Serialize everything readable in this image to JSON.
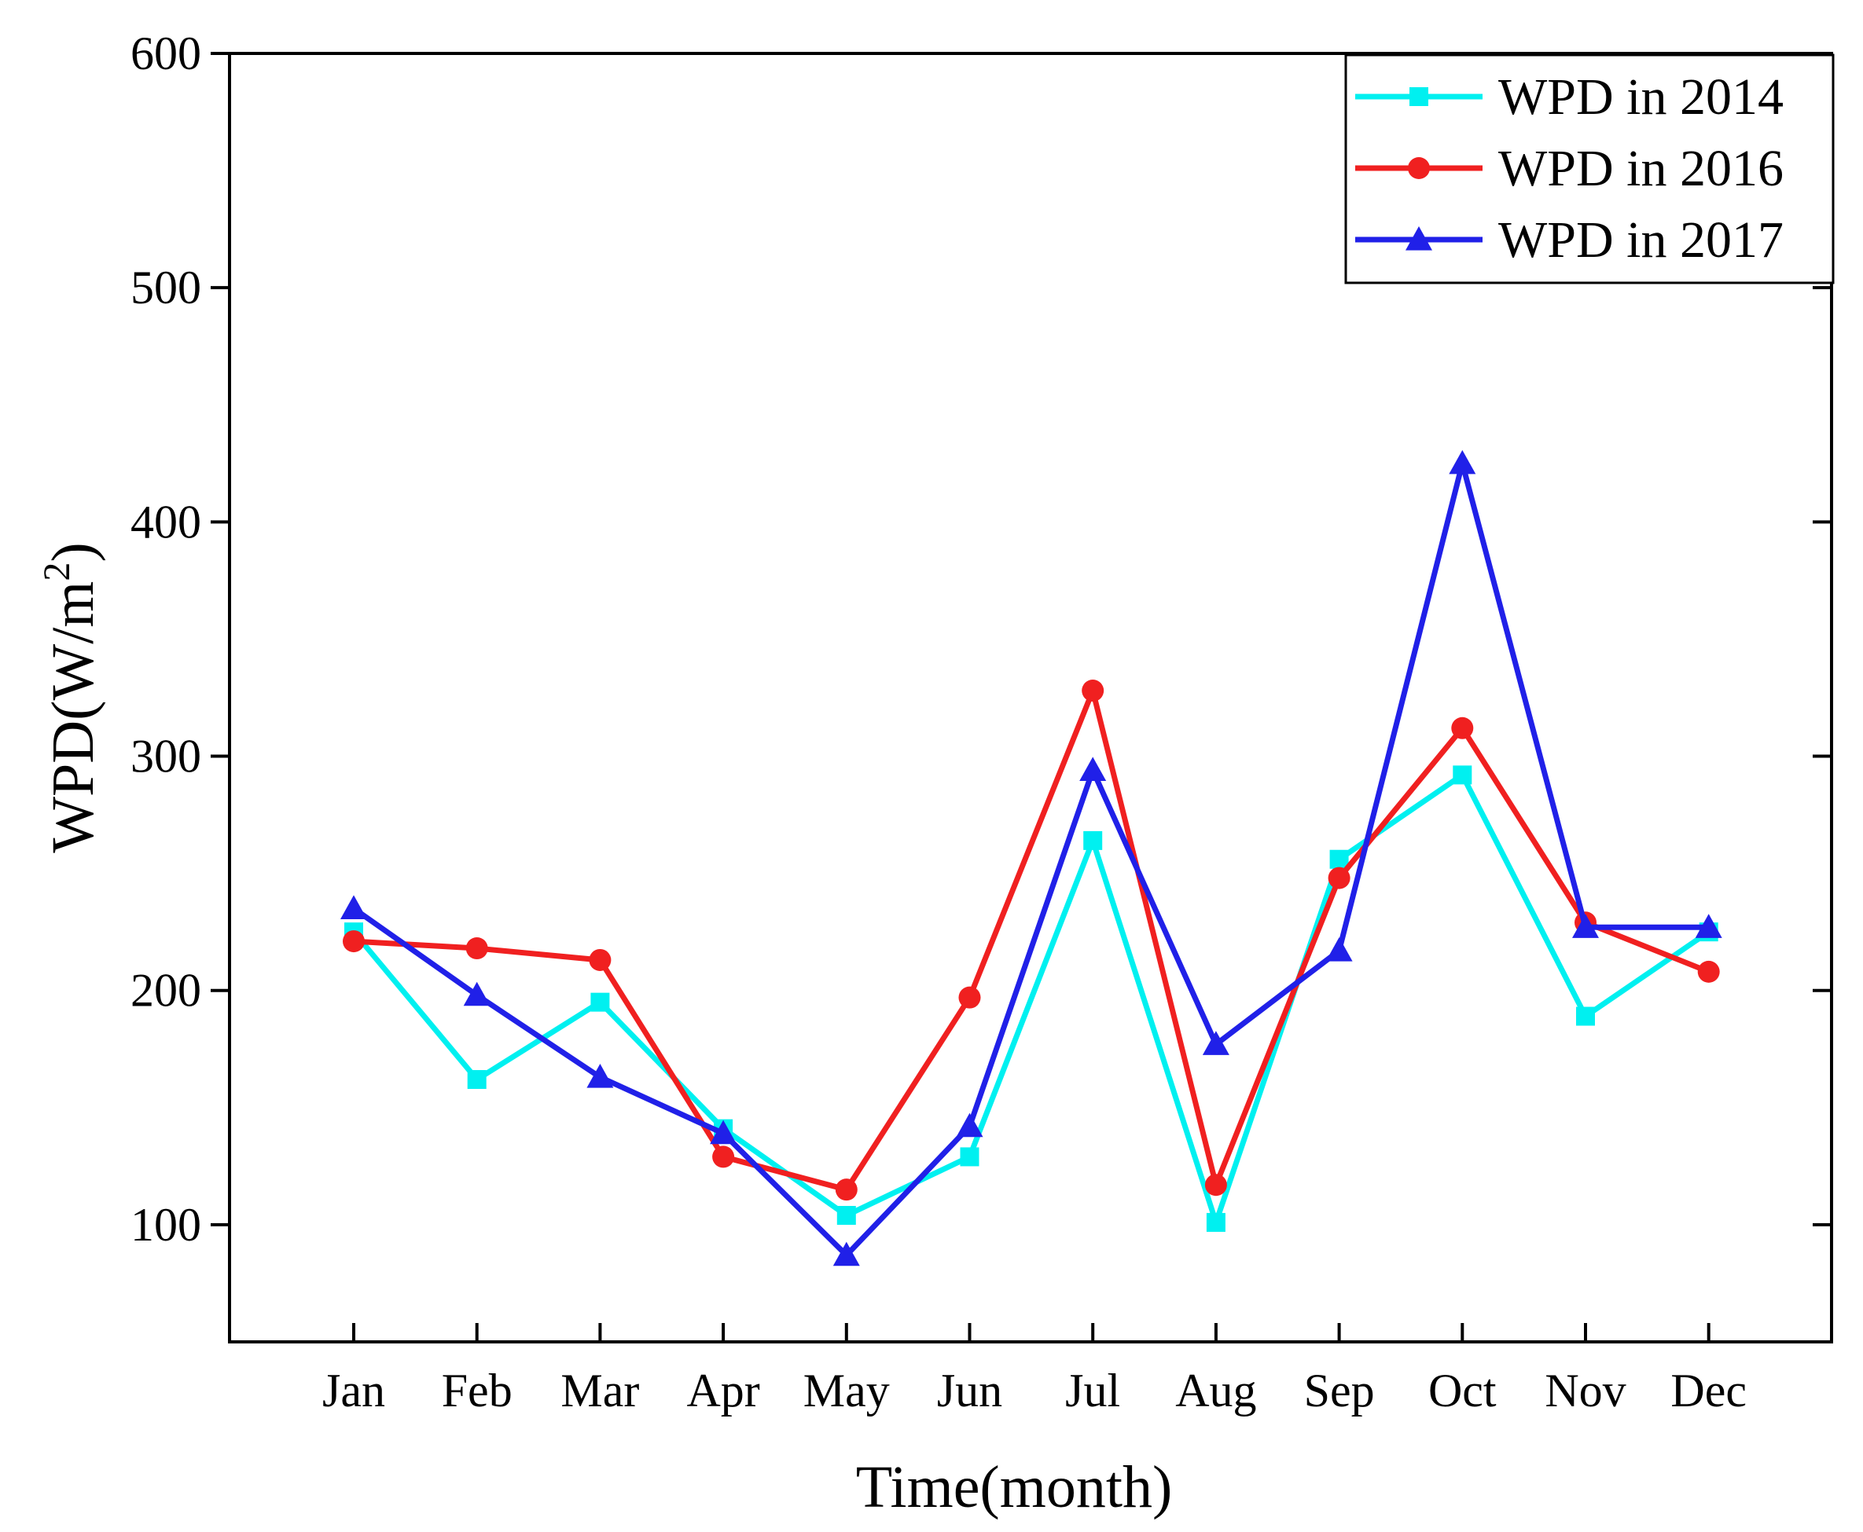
{
  "chart_data": {
    "type": "line",
    "title": "",
    "xlabel": "Time(month)",
    "ylabel": {
      "main": "WPD(W/m",
      "sup": "2",
      "tail": ")"
    },
    "ylim": [
      50,
      600
    ],
    "yticks": [
      100,
      200,
      300,
      400,
      500,
      600
    ],
    "categories": [
      "Jan",
      "Feb",
      "Mar",
      "Apr",
      "May",
      "Jun",
      "Jul",
      "Aug",
      "Sep",
      "Oct",
      "Nov",
      "Dec"
    ],
    "legend_position": "top-right",
    "series": [
      {
        "name": "WPD in 2014",
        "color": "#00f0f0",
        "marker": "square",
        "values": [
          225,
          162,
          195,
          141,
          104,
          129,
          264,
          101,
          256,
          292,
          189,
          225
        ]
      },
      {
        "name": "WPD in 2016",
        "color": "#f02020",
        "marker": "circle",
        "values": [
          221,
          218,
          213,
          129,
          115,
          197,
          328,
          117,
          248,
          312,
          229,
          208
        ]
      },
      {
        "name": "WPD in 2017",
        "color": "#2020e8",
        "marker": "triangle",
        "values": [
          235,
          198,
          163,
          139,
          87,
          142,
          294,
          177,
          217,
          425,
          227,
          227
        ]
      }
    ]
  }
}
